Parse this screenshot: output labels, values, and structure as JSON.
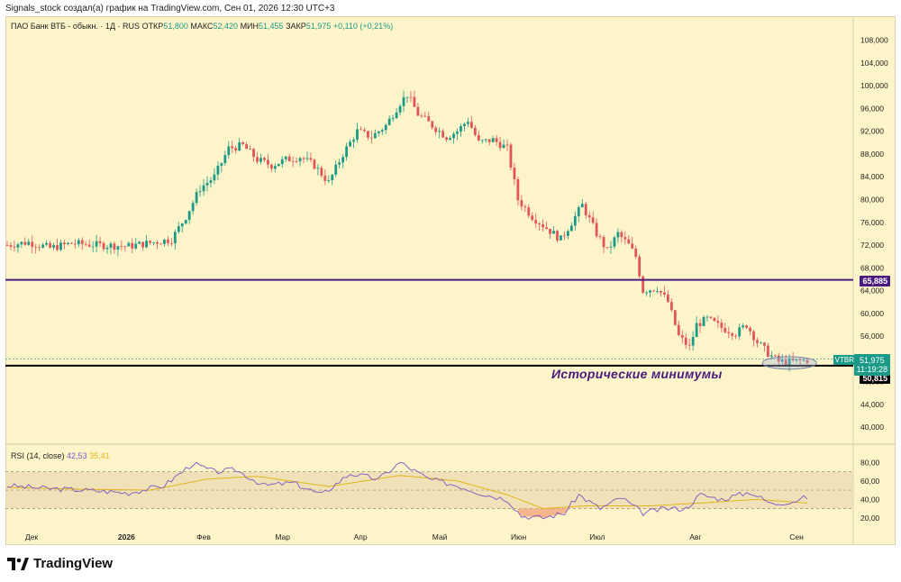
{
  "header": {
    "text": "Signals_stock создал(а) график на TradingView.com, Сен 01, 2026 12:30 UTC+3"
  },
  "symbol": {
    "name": "ПАО Банк ВТБ - обыкн. · 1Д · RUS",
    "open_label": "ОТКР",
    "open": "51,800",
    "high_label": "МАКС",
    "high": "52,420",
    "low_label": "МИН",
    "low": "51,455",
    "close_label": "ЗАКР",
    "close": "51,975",
    "change": "+0,110 (+0,21%)"
  },
  "rsi": {
    "label": "RSI (14, close)",
    "value": "42,53",
    "ma_value": "35,41"
  },
  "price_tag": {
    "ticker": "VTBR",
    "price": "51,975",
    "countdown": "11:19:28"
  },
  "resistance": {
    "value": 65.885,
    "label": "65,885"
  },
  "support": {
    "value": 50.815,
    "label": "50,815"
  },
  "annotation": {
    "text": "Исторические минимумы"
  },
  "brand": {
    "name": "TradingView"
  },
  "colors": {
    "up": "#1b9a88",
    "down": "#e0545a",
    "resistance": "#4a1b7e",
    "support": "#000000",
    "rsi_line": "#7e57c2",
    "rsi_ma": "#e2b51b",
    "background": "#fdf5c9"
  },
  "chart_data": {
    "type": "candlestick",
    "price_axis": {
      "ticks": [
        "108,000",
        "104,000",
        "100,000",
        "96,000",
        "92,000",
        "88,000",
        "84,000",
        "80,000",
        "76,000",
        "72,000",
        "68,000",
        "64,000",
        "60,000",
        "56,000",
        "52,000",
        "48,000",
        "44,000",
        "40,000"
      ],
      "ylim": [
        37.5,
        110
      ]
    },
    "time_axis": {
      "labels": [
        "Дек",
        "2026",
        "Фев",
        "Мар",
        "Апр",
        "Май",
        "Июн",
        "Июл",
        "Авг",
        "Сен"
      ]
    },
    "price_path": [
      {
        "t": 0,
        "v": 72
      },
      {
        "t": 6,
        "v": 72.5
      },
      {
        "t": 12,
        "v": 71.5
      },
      {
        "t": 18,
        "v": 72.3
      },
      {
        "t": 26,
        "v": 72
      },
      {
        "t": 34,
        "v": 71.8
      },
      {
        "t": 40,
        "v": 72.4
      },
      {
        "t": 46,
        "v": 73
      },
      {
        "t": 50,
        "v": 77
      },
      {
        "t": 54,
        "v": 82
      },
      {
        "t": 58,
        "v": 84
      },
      {
        "t": 62,
        "v": 89
      },
      {
        "t": 66,
        "v": 89.5
      },
      {
        "t": 70,
        "v": 87
      },
      {
        "t": 74,
        "v": 86
      },
      {
        "t": 78,
        "v": 87
      },
      {
        "t": 82,
        "v": 87.5
      },
      {
        "t": 86,
        "v": 86
      },
      {
        "t": 90,
        "v": 83
      },
      {
        "t": 94,
        "v": 88
      },
      {
        "t": 98,
        "v": 92
      },
      {
        "t": 102,
        "v": 91
      },
      {
        "t": 106,
        "v": 93
      },
      {
        "t": 110,
        "v": 97
      },
      {
        "t": 112,
        "v": 98.5
      },
      {
        "t": 115,
        "v": 95
      },
      {
        "t": 119,
        "v": 93
      },
      {
        "t": 123,
        "v": 91
      },
      {
        "t": 126,
        "v": 92
      },
      {
        "t": 129,
        "v": 94
      },
      {
        "t": 132,
        "v": 90
      },
      {
        "t": 136,
        "v": 90.5
      },
      {
        "t": 140,
        "v": 89
      },
      {
        "t": 143,
        "v": 80
      },
      {
        "t": 147,
        "v": 77
      },
      {
        "t": 151,
        "v": 75
      },
      {
        "t": 155,
        "v": 73
      },
      {
        "t": 159,
        "v": 77
      },
      {
        "t": 161,
        "v": 79
      },
      {
        "t": 165,
        "v": 74
      },
      {
        "t": 168,
        "v": 71
      },
      {
        "t": 171,
        "v": 74
      },
      {
        "t": 174,
        "v": 72
      },
      {
        "t": 176,
        "v": 70
      },
      {
        "t": 178,
        "v": 64
      },
      {
        "t": 182,
        "v": 64.5
      },
      {
        "t": 185,
        "v": 62
      },
      {
        "t": 188,
        "v": 56
      },
      {
        "t": 191,
        "v": 54
      },
      {
        "t": 193,
        "v": 58
      },
      {
        "t": 196,
        "v": 59
      },
      {
        "t": 200,
        "v": 57.5
      },
      {
        "t": 204,
        "v": 56.5
      },
      {
        "t": 207,
        "v": 58
      },
      {
        "t": 210,
        "v": 55
      },
      {
        "t": 213,
        "v": 53
      },
      {
        "t": 216,
        "v": 51.5
      },
      {
        "t": 220,
        "v": 51.5
      },
      {
        "t": 224,
        "v": 51.8
      }
    ],
    "rsi_axis": {
      "ticks": [
        "80,00",
        "60,00",
        "40,00",
        "20,00"
      ],
      "ylim": [
        10,
        95
      ],
      "bands": [
        70,
        30
      ],
      "mid": 50
    },
    "rsi_path": [
      {
        "t": 0,
        "v": 55
      },
      {
        "t": 10,
        "v": 52
      },
      {
        "t": 22,
        "v": 50
      },
      {
        "t": 34,
        "v": 47
      },
      {
        "t": 44,
        "v": 55
      },
      {
        "t": 52,
        "v": 79
      },
      {
        "t": 58,
        "v": 70
      },
      {
        "t": 64,
        "v": 72
      },
      {
        "t": 72,
        "v": 55
      },
      {
        "t": 80,
        "v": 58
      },
      {
        "t": 88,
        "v": 45
      },
      {
        "t": 96,
        "v": 68
      },
      {
        "t": 104,
        "v": 62
      },
      {
        "t": 110,
        "v": 80
      },
      {
        "t": 118,
        "v": 62
      },
      {
        "t": 126,
        "v": 55
      },
      {
        "t": 134,
        "v": 45
      },
      {
        "t": 140,
        "v": 40
      },
      {
        "t": 144,
        "v": 22
      },
      {
        "t": 150,
        "v": 20
      },
      {
        "t": 156,
        "v": 25
      },
      {
        "t": 160,
        "v": 45
      },
      {
        "t": 166,
        "v": 30
      },
      {
        "t": 172,
        "v": 42
      },
      {
        "t": 178,
        "v": 25
      },
      {
        "t": 184,
        "v": 30
      },
      {
        "t": 190,
        "v": 30
      },
      {
        "t": 194,
        "v": 45
      },
      {
        "t": 200,
        "v": 40
      },
      {
        "t": 208,
        "v": 48
      },
      {
        "t": 214,
        "v": 35
      },
      {
        "t": 220,
        "v": 38
      },
      {
        "t": 224,
        "v": 42.5
      }
    ],
    "rsi_ma_path": [
      {
        "t": 0,
        "v": 53
      },
      {
        "t": 20,
        "v": 51
      },
      {
        "t": 40,
        "v": 50
      },
      {
        "t": 56,
        "v": 62
      },
      {
        "t": 70,
        "v": 65
      },
      {
        "t": 90,
        "v": 54
      },
      {
        "t": 110,
        "v": 66
      },
      {
        "t": 126,
        "v": 60
      },
      {
        "t": 140,
        "v": 45
      },
      {
        "t": 150,
        "v": 30
      },
      {
        "t": 162,
        "v": 33
      },
      {
        "t": 180,
        "v": 33
      },
      {
        "t": 194,
        "v": 36
      },
      {
        "t": 210,
        "v": 40
      },
      {
        "t": 224,
        "v": 36
      }
    ]
  }
}
